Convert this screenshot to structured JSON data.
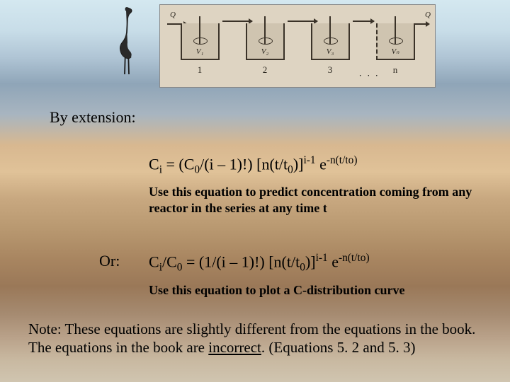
{
  "background": {
    "gradient_stops": [
      "#d4e8f0",
      "#c8dde8",
      "#b0c5d5",
      "#8fa5b8",
      "#a8b5c0",
      "#d8b890",
      "#e0c298",
      "#c8a880",
      "#b89870",
      "#a88560",
      "#9a7858",
      "#a58a70",
      "#b8a088",
      "#c8b8a0",
      "#d0c5b0"
    ]
  },
  "diagram": {
    "bg_color": "#ded4c2",
    "border_color": "#3a3228",
    "reactors": [
      {
        "v_label": "V₁",
        "number": "1"
      },
      {
        "v_label": "V₂",
        "number": "2"
      },
      {
        "v_label": "V₃",
        "number": "3"
      },
      {
        "v_label": "Vₙ",
        "number": "n"
      }
    ],
    "inflow_label": "Q",
    "outflow_label": "Q",
    "ellipsis": "· · ·"
  },
  "text": {
    "by_extension": "By extension:",
    "or_label": "Or:",
    "eq1_html": "C<sub>i</sub> = (C<sub>0</sub>/(i – 1)!) [n(t/t<sub>0</sub>)]<sup>i-1</sup> e<sup>-n(t/to)</sup>",
    "use1": "Use this equation to predict concentration coming from any reactor in the series at any time t",
    "eq2_html": "C<sub>i</sub>/C<sub>0</sub> = (1/(i – 1)!) [n(t/t<sub>0</sub>)]<sup>i-1</sup> e<sup>-n(t/to)</sup>",
    "use2": "Use this equation to plot a C-distribution curve",
    "note_html": "Note: These equations are slightly different from the equations in the book.  The equations in the book are <span class=\"underline\">incorrect</span>. (Equations 5. 2 and 5. 3)"
  },
  "typography": {
    "body_font": "Times New Roman",
    "heading_size_pt": 22,
    "caption_size_pt": 18,
    "note_size_pt": 21,
    "text_color": "#000000"
  }
}
